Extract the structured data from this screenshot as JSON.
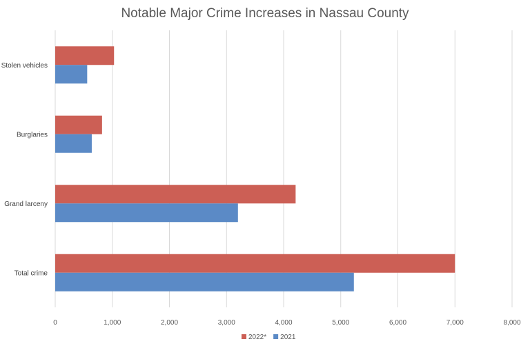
{
  "chart_data": {
    "type": "bar",
    "orientation": "horizontal",
    "title": "Notable Major Crime Increases in Nassau County",
    "xlabel": "",
    "ylabel": "",
    "categories": [
      "Total crime",
      "Grand larceny",
      "Burglaries",
      "Stolen vehicles"
    ],
    "series": [
      {
        "name": "2021",
        "values": [
          5230,
          3200,
          640,
          560
        ],
        "color": "#5b8ac6"
      },
      {
        "name": "2022*",
        "values": [
          7000,
          4210,
          820,
          1030
        ],
        "color": "#cc5f55"
      }
    ],
    "xlim": [
      0,
      8000
    ],
    "x_ticks": [
      0,
      1000,
      2000,
      3000,
      4000,
      5000,
      6000,
      7000,
      8000
    ],
    "x_tick_labels": [
      "0",
      "1,000",
      "2,000",
      "3,000",
      "4,000",
      "5,000",
      "6,000",
      "7,000",
      "8,000"
    ],
    "grid": "vertical",
    "legend_position": "bottom",
    "legend_order": [
      "2022*",
      "2021"
    ]
  }
}
